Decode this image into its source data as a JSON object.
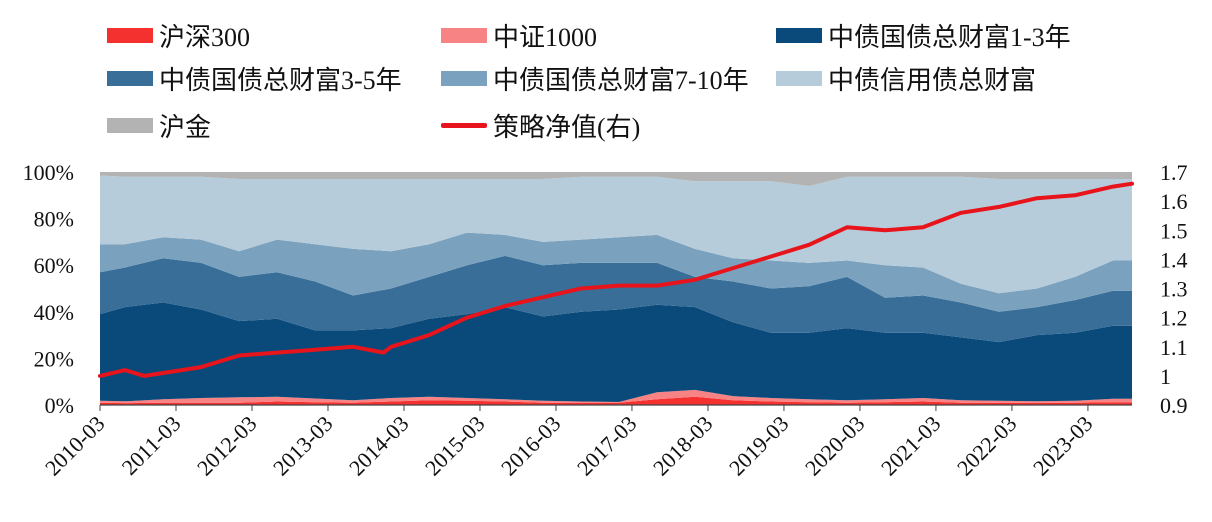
{
  "legend": {
    "items": [
      {
        "label": "沪深300",
        "color": "#f5312f",
        "kind": "area"
      },
      {
        "label": "中证1000",
        "color": "#f78385",
        "kind": "area"
      },
      {
        "label": "中债国债总财富1-3年",
        "color": "#0a4a7a",
        "kind": "area"
      },
      {
        "label": "中债国债总财富3-5年",
        "color": "#386e98",
        "kind": "area"
      },
      {
        "label": "中债国债总财富7-10年",
        "color": "#7aa2bf",
        "kind": "area"
      },
      {
        "label": "中债信用债总财富",
        "color": "#b7ccda",
        "kind": "area"
      },
      {
        "label": "沪金",
        "color": "#b3b3b3",
        "kind": "area"
      },
      {
        "label": "策略净值(右)",
        "color": "#e8141c",
        "kind": "line"
      }
    ]
  },
  "chart_data": {
    "type": "area",
    "stacked": true,
    "x_tick_labels": [
      "2010-03",
      "2011-03",
      "2012-03",
      "2013-03",
      "2014-03",
      "2015-03",
      "2016-03",
      "2017-03",
      "2018-03",
      "2019-03",
      "2020-03",
      "2021-03",
      "2022-03",
      "2023-03"
    ],
    "x_range": [
      2010.17,
      2023.75
    ],
    "ylim_left": [
      0,
      100
    ],
    "y_ticks_left": [
      "0%",
      "20%",
      "40%",
      "60%",
      "80%",
      "100%"
    ],
    "ylim_right": [
      0.9,
      1.7
    ],
    "y_ticks_right": [
      "0.9",
      "1",
      "1.1",
      "1.2",
      "1.3",
      "1.4",
      "1.5",
      "1.6",
      "1.7"
    ],
    "x": [
      2010.17,
      2010.5,
      2011.0,
      2011.5,
      2012.0,
      2012.5,
      2013.0,
      2013.5,
      2014.0,
      2014.5,
      2015.0,
      2015.5,
      2016.0,
      2016.5,
      2017.0,
      2017.5,
      2018.0,
      2018.5,
      2019.0,
      2019.5,
      2020.0,
      2020.5,
      2021.0,
      2021.5,
      2022.0,
      2022.5,
      2023.0,
      2023.5,
      2023.75
    ],
    "series": [
      {
        "name": "沪深300",
        "values": [
          1.0,
          0.8,
          1.0,
          1.0,
          1.0,
          1.5,
          1.2,
          1.0,
          1.5,
          2.0,
          1.8,
          1.5,
          1.0,
          1.0,
          1.0,
          2.5,
          3.5,
          2.0,
          1.5,
          1.2,
          1.0,
          1.2,
          1.5,
          1.0,
          1.0,
          1.0,
          1.0,
          1.2,
          1.2
        ]
      },
      {
        "name": "中证1000",
        "values": [
          0.8,
          0.8,
          1.5,
          2.0,
          2.3,
          2.0,
          1.6,
          1.0,
          1.5,
          1.5,
          1.2,
          1.0,
          0.8,
          0.5,
          0.3,
          3.0,
          3.0,
          1.8,
          1.5,
          1.3,
          1.0,
          1.3,
          1.5,
          1.0,
          0.8,
          0.6,
          0.8,
          1.5,
          1.5
        ]
      },
      {
        "name": "中债国债总财富1-3年",
        "values": [
          37.2,
          40.4,
          41.5,
          38.0,
          32.7,
          33.5,
          29.2,
          30.0,
          30.0,
          33.5,
          36.0,
          39.5,
          36.2,
          38.5,
          39.7,
          37.5,
          35.5,
          31.7,
          28.0,
          28.5,
          31.0,
          28.5,
          28.0,
          27.0,
          25.2,
          28.4,
          29.2,
          31.3,
          31.3
        ]
      },
      {
        "name": "中债国债总财富3-5年",
        "values": [
          18.0,
          17.0,
          19.0,
          20.0,
          19.0,
          20.0,
          21.0,
          15.0,
          17.0,
          18.0,
          21.0,
          22.0,
          22.0,
          21.0,
          20.0,
          18.0,
          13.0,
          17.5,
          19.0,
          20.0,
          22.0,
          15.0,
          16.0,
          15.0,
          13.0,
          12.0,
          14.0,
          15.0,
          15.0
        ]
      },
      {
        "name": "中债国债总财富7-10年",
        "values": [
          12.0,
          10.0,
          9.0,
          10.0,
          11.0,
          14.0,
          16.0,
          20.0,
          16.0,
          14.0,
          14.0,
          9.0,
          10.0,
          10.0,
          11.0,
          12.0,
          12.0,
          10.0,
          12.0,
          10.0,
          7.0,
          14.0,
          12.0,
          8.0,
          8.0,
          8.0,
          10.0,
          13.0,
          13.0
        ]
      },
      {
        "name": "中债信用债总财富",
        "values": [
          29.5,
          29.0,
          26.0,
          27.0,
          31.0,
          26.0,
          28.0,
          30.0,
          31.0,
          28.0,
          23.0,
          24.0,
          27.0,
          27.0,
          26.0,
          25.0,
          29.0,
          33.0,
          34.0,
          33.0,
          36.0,
          38.0,
          39.0,
          46.0,
          49.0,
          47.0,
          42.0,
          35.0,
          35.0
        ]
      },
      {
        "name": "沪金",
        "values": [
          1.5,
          2.0,
          2.0,
          2.0,
          3.0,
          3.0,
          3.0,
          3.0,
          3.0,
          3.0,
          3.0,
          3.0,
          3.0,
          2.0,
          2.0,
          2.0,
          4.0,
          4.0,
          4.0,
          6.0,
          2.0,
          2.0,
          2.0,
          2.0,
          3.0,
          3.0,
          3.0,
          3.0,
          3.0
        ]
      }
    ],
    "line": {
      "name": "策略净值(右)",
      "axis": "right",
      "x": [
        2010.17,
        2010.5,
        2010.75,
        2011.0,
        2011.5,
        2012.0,
        2012.5,
        2013.0,
        2013.5,
        2013.9,
        2014.0,
        2014.5,
        2015.0,
        2015.5,
        2016.0,
        2016.5,
        2017.0,
        2017.5,
        2018.0,
        2018.5,
        2019.0,
        2019.5,
        2020.0,
        2020.5,
        2021.0,
        2021.5,
        2022.0,
        2022.5,
        2023.0,
        2023.5,
        2023.75
      ],
      "values": [
        1.0,
        1.02,
        1.0,
        1.01,
        1.03,
        1.07,
        1.08,
        1.09,
        1.1,
        1.08,
        1.1,
        1.14,
        1.2,
        1.24,
        1.27,
        1.3,
        1.31,
        1.31,
        1.33,
        1.37,
        1.41,
        1.45,
        1.51,
        1.5,
        1.51,
        1.56,
        1.58,
        1.61,
        1.62,
        1.65,
        1.66
      ]
    }
  }
}
